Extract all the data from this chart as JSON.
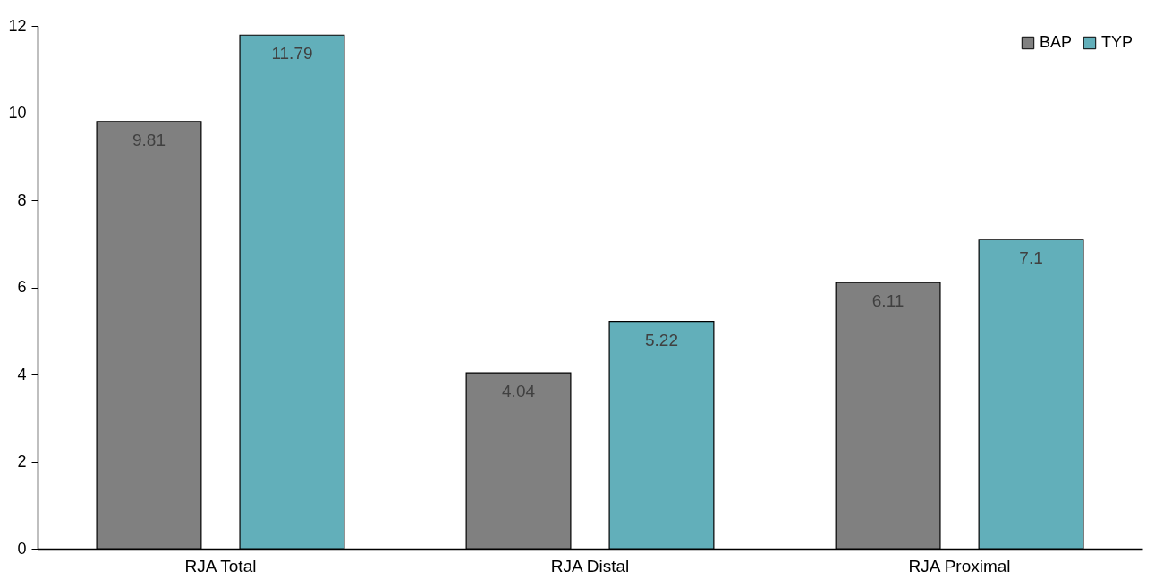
{
  "chart_data": {
    "type": "bar",
    "categories": [
      "RJA Total",
      "RJA Distal",
      "RJA Proximal"
    ],
    "series": [
      {
        "name": "BAP",
        "color": "#808080",
        "values": [
          9.81,
          4.04,
          6.11
        ]
      },
      {
        "name": "TYP",
        "color": "#62afba",
        "values": [
          11.79,
          5.22,
          7.1
        ]
      }
    ],
    "ylim": [
      0,
      12
    ],
    "yticks": [
      0,
      2,
      4,
      6,
      8,
      10,
      12
    ],
    "grid": false,
    "legend": "top right",
    "data_labels": true
  }
}
